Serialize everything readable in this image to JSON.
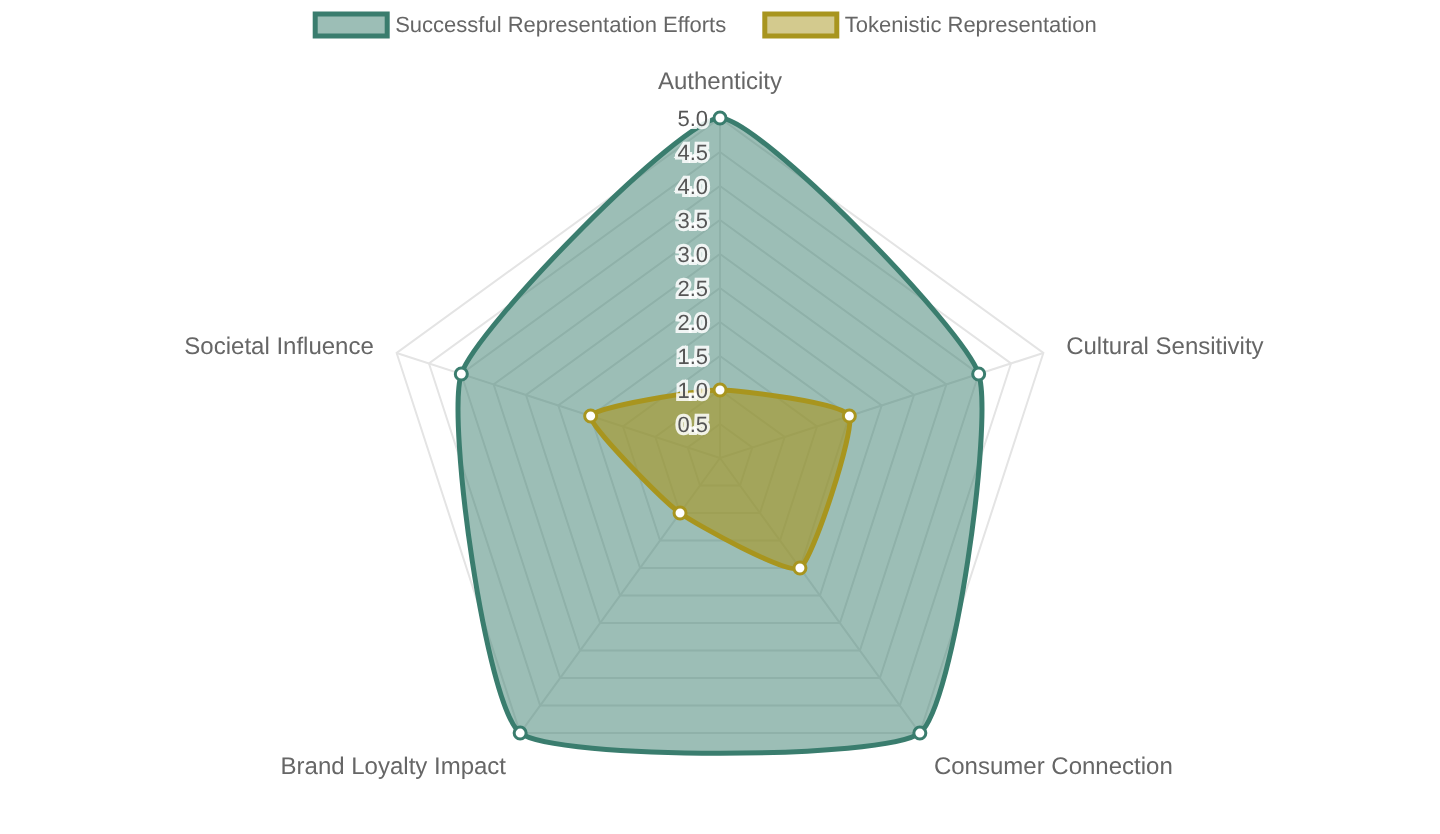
{
  "chart_data": {
    "type": "radar",
    "categories": [
      "Authenticity",
      "Cultural Sensitivity",
      "Consumer Connection",
      "Brand Loyalty Impact",
      "Societal Influence"
    ],
    "series": [
      {
        "name": "Successful Representation Efforts",
        "color": "#3a7d6e",
        "values": [
          5,
          4,
          5,
          5,
          4
        ]
      },
      {
        "name": "Tokenistic Representation",
        "color": "#a8951e",
        "values": [
          1,
          2,
          2,
          1,
          2
        ]
      }
    ],
    "ylim": [
      0,
      5
    ],
    "yticks": [
      {
        "value": 0.5,
        "label": "0.5"
      },
      {
        "value": 1,
        "label": "1.0"
      },
      {
        "value": 1.5,
        "label": "1.5"
      },
      {
        "value": 2,
        "label": "2.0"
      },
      {
        "value": 2.5,
        "label": "2.5"
      },
      {
        "value": 3,
        "label": "3.0"
      },
      {
        "value": 3.5,
        "label": "3.5"
      },
      {
        "value": 4,
        "label": "4.0"
      },
      {
        "value": 4.5,
        "label": "4.5"
      },
      {
        "value": 5,
        "label": "5.0"
      }
    ],
    "grid": true,
    "legend": "top",
    "marker": "circle",
    "line_style": "solid"
  }
}
